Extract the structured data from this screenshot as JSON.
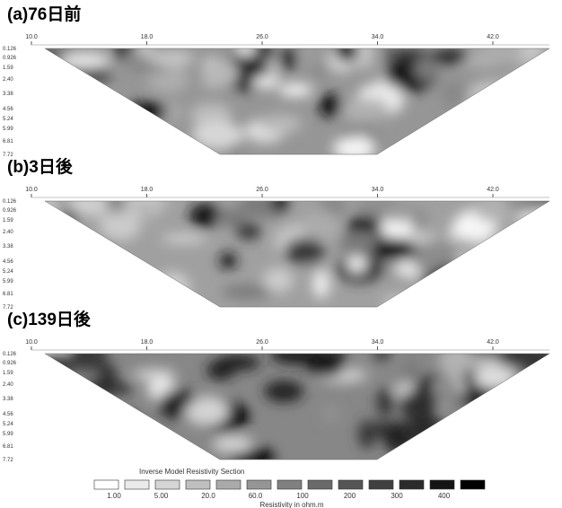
{
  "panels": [
    {
      "label": "(a)76日前"
    },
    {
      "label": "(b)3日後"
    },
    {
      "label": "(c)139日後"
    }
  ],
  "x_ticks": [
    "10.0",
    "18.0",
    "26.0",
    "34.0",
    "42.0"
  ],
  "depth_labels": [
    "0.126",
    "0.926",
    "1.59",
    "2.40",
    "3.38",
    "4.56",
    "5.24",
    "5.99",
    "6.81",
    "7.72"
  ],
  "legend": {
    "title": "Inverse Model Resistivity Section",
    "labels": [
      "1.00",
      "5.00",
      "20.0",
      "60.0",
      "100",
      "200",
      "300",
      "400"
    ],
    "units": "Resistivity in ohm.m"
  }
}
